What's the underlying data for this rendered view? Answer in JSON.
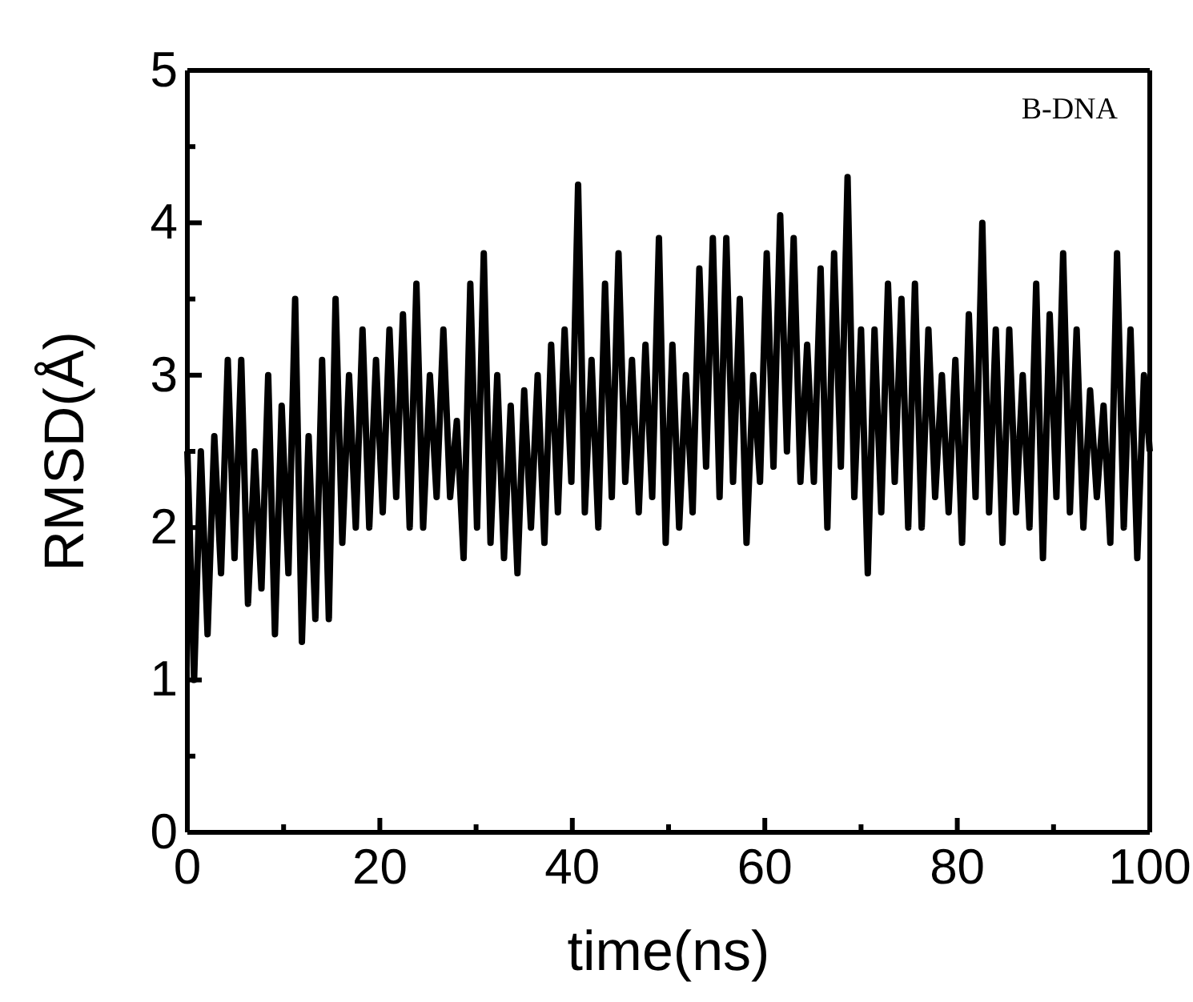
{
  "chart_data": {
    "type": "line",
    "xlabel": "time(ns)",
    "ylabel": "RMSD(Å)",
    "annotations": [
      "B-DNA"
    ],
    "xlim": [
      0,
      100
    ],
    "ylim": [
      0,
      5
    ],
    "xticks": [
      0,
      {
        "value": 10,
        "label": null
      },
      20,
      {
        "value": 30,
        "label": null
      },
      40,
      {
        "value": 50,
        "label": null
      },
      60,
      {
        "value": 70,
        "label": null
      },
      80,
      {
        "value": 90,
        "label": null
      },
      100
    ],
    "yticks": [
      0,
      {
        "value": 0.5,
        "label": null
      },
      1,
      {
        "value": 1.5,
        "label": null
      },
      2,
      {
        "value": 2.5,
        "label": null
      },
      3,
      {
        "value": 3.5,
        "label": null
      },
      4,
      {
        "value": 4.5,
        "label": null
      },
      5
    ],
    "grid": false,
    "marker": "none",
    "line_style": "solid",
    "x": [
      0,
      0.7,
      1.4,
      2.1,
      2.8,
      3.5,
      4.2,
      4.9,
      5.6,
      6.3,
      7.0,
      7.7,
      8.4,
      9.1,
      9.8,
      10.5,
      11.2,
      11.9,
      12.6,
      13.3,
      14.0,
      14.7,
      15.4,
      16.1,
      16.8,
      17.5,
      18.2,
      18.9,
      19.6,
      20.3,
      21.0,
      21.7,
      22.4,
      23.1,
      23.8,
      24.5,
      25.2,
      25.9,
      26.6,
      27.3,
      28.0,
      28.7,
      29.4,
      30.1,
      30.8,
      31.5,
      32.2,
      32.9,
      33.6,
      34.3,
      35.0,
      35.7,
      36.4,
      37.1,
      37.8,
      38.5,
      39.2,
      39.9,
      40.6,
      41.3,
      42.0,
      42.7,
      43.4,
      44.1,
      44.8,
      45.5,
      46.2,
      46.9,
      47.6,
      48.3,
      49.0,
      49.7,
      50.4,
      51.1,
      51.8,
      52.5,
      53.2,
      53.9,
      54.6,
      55.3,
      56.0,
      56.7,
      57.4,
      58.1,
      58.8,
      59.5,
      60.2,
      60.9,
      61.6,
      62.3,
      63.0,
      63.7,
      64.4,
      65.1,
      65.8,
      66.5,
      67.2,
      67.9,
      68.6,
      69.3,
      70.0,
      70.7,
      71.4,
      72.1,
      72.8,
      73.5,
      74.2,
      74.9,
      75.6,
      76.3,
      77.0,
      77.7,
      78.4,
      79.1,
      79.8,
      80.5,
      81.2,
      81.9,
      82.6,
      83.3,
      84.0,
      84.7,
      85.4,
      86.1,
      86.8,
      87.5,
      88.2,
      88.9,
      89.6,
      90.3,
      91.0,
      91.7,
      92.4,
      93.1,
      93.8,
      94.5,
      95.2,
      95.9,
      96.6,
      97.3,
      98.0,
      98.7,
      99.4,
      100
    ],
    "series": [
      {
        "color": "#000000",
        "values": [
          2.5,
          1.0,
          2.5,
          1.3,
          2.6,
          1.7,
          3.1,
          1.8,
          3.1,
          1.5,
          2.5,
          1.6,
          3.0,
          1.3,
          2.8,
          1.7,
          3.5,
          1.25,
          2.6,
          1.4,
          3.1,
          1.4,
          3.5,
          1.9,
          3.0,
          2.0,
          3.3,
          2.0,
          3.1,
          2.1,
          3.3,
          2.2,
          3.4,
          2.0,
          3.6,
          2.0,
          3.0,
          2.2,
          3.3,
          2.2,
          2.7,
          1.8,
          3.6,
          2.0,
          3.8,
          1.9,
          3.0,
          1.8,
          2.8,
          1.7,
          2.9,
          2.0,
          3.0,
          1.9,
          3.2,
          2.1,
          3.3,
          2.3,
          4.25,
          2.1,
          3.1,
          2.0,
          3.6,
          2.2,
          3.8,
          2.3,
          3.1,
          2.1,
          3.2,
          2.2,
          3.9,
          1.9,
          3.2,
          2.0,
          3.0,
          2.1,
          3.7,
          2.4,
          3.9,
          2.2,
          3.9,
          2.3,
          3.5,
          1.9,
          3.0,
          2.3,
          3.8,
          2.4,
          4.05,
          2.5,
          3.9,
          2.3,
          3.2,
          2.3,
          3.7,
          2.0,
          3.8,
          2.4,
          4.3,
          2.2,
          3.3,
          1.7,
          3.3,
          2.1,
          3.6,
          2.3,
          3.5,
          2.0,
          3.6,
          2.0,
          3.3,
          2.2,
          3.0,
          2.1,
          3.1,
          1.9,
          3.4,
          2.2,
          4.0,
          2.1,
          3.3,
          1.9,
          3.3,
          2.1,
          3.0,
          2.0,
          3.6,
          1.8,
          3.4,
          2.2,
          3.8,
          2.1,
          3.3,
          2.0,
          2.9,
          2.2,
          2.8,
          1.9,
          3.8,
          2.0,
          3.3,
          1.8,
          3.0,
          2.5
        ]
      }
    ]
  }
}
